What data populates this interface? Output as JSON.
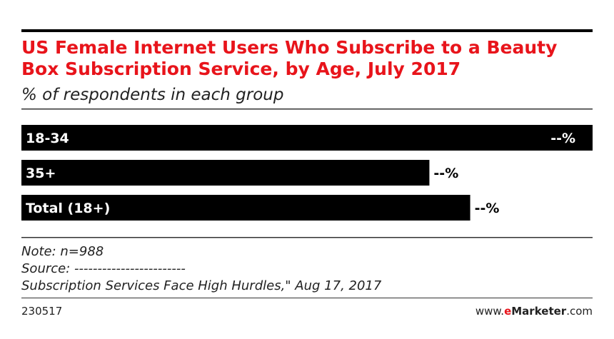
{
  "chart_data": {
    "type": "bar",
    "orientation": "horizontal",
    "title": [
      "US Female Internet Users Who Subscribe to a Beauty",
      "Box Subscription Service, by Age, July 2017"
    ],
    "subtitle": "% of respondents in each group",
    "categories": [
      "18-34",
      "35+",
      "Total (18+)"
    ],
    "values": [
      28,
      20,
      22
    ],
    "value_labels": [
      "--%",
      "--%",
      "--%"
    ],
    "color": "#000000",
    "notes": [
      "Note: n=988",
      "Source: ------------------------",
      "Subscription Services Face High Hurdles,\" Aug 17, 2017"
    ],
    "footer": {
      "id": "230517",
      "site": [
        "www.",
        "e",
        "Marketer",
        ".com"
      ]
    }
  }
}
